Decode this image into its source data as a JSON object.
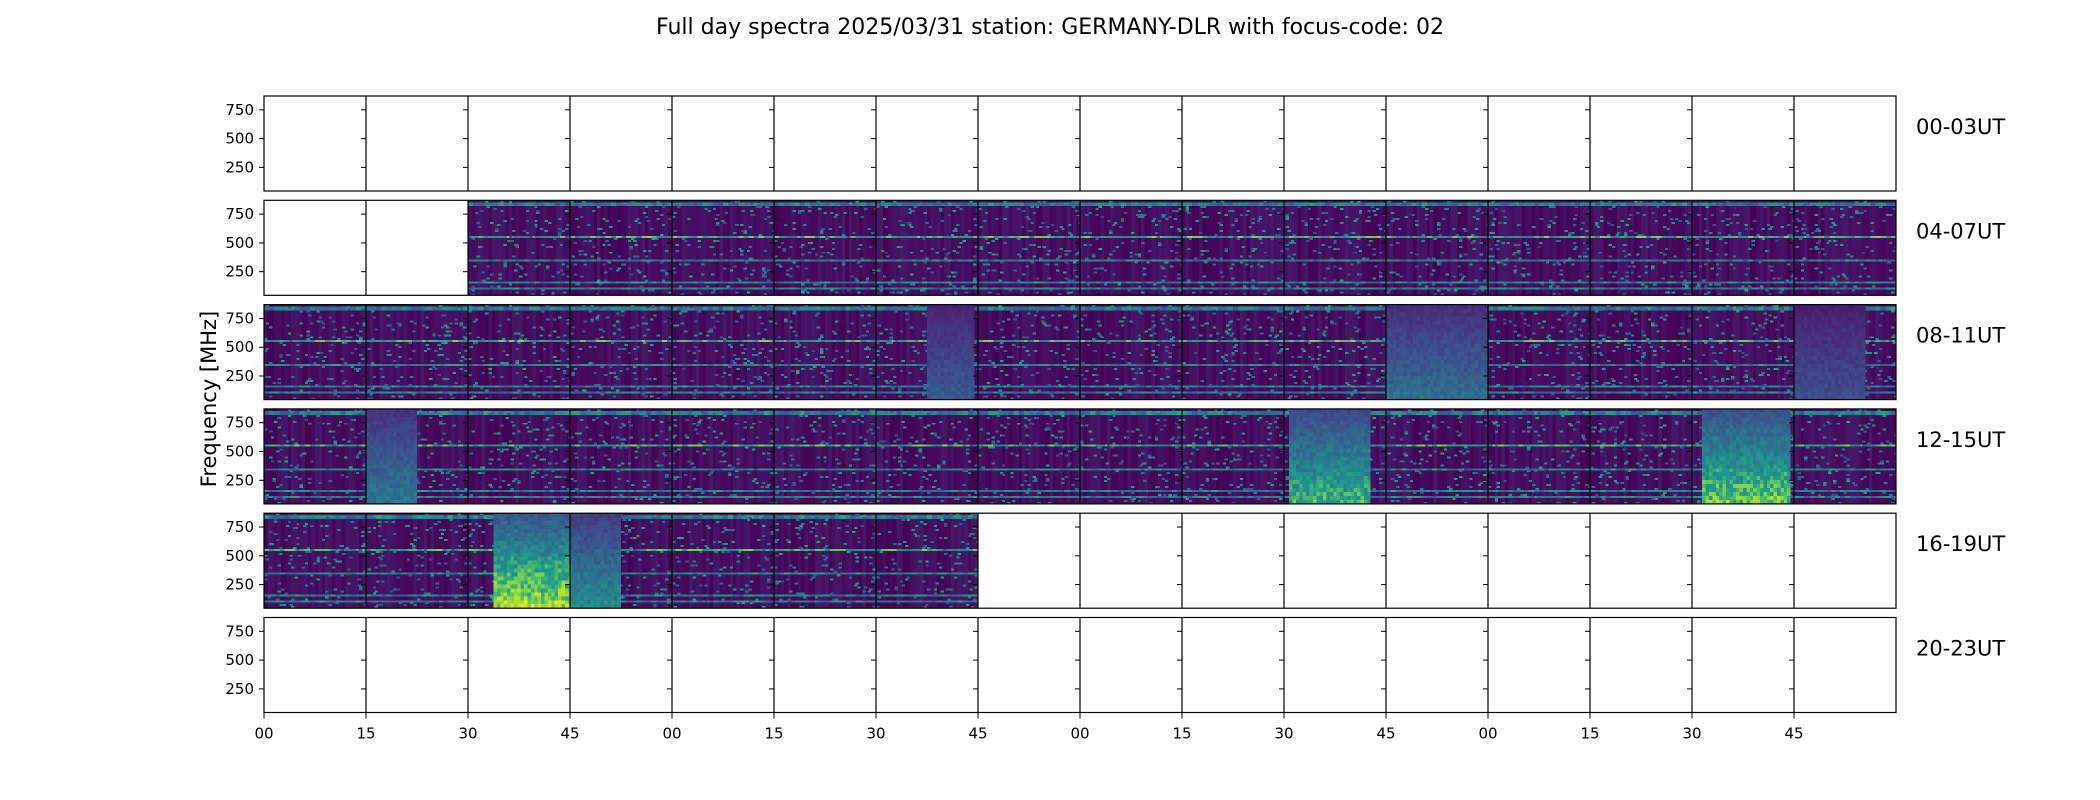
{
  "title": "Full day spectra 2025/03/31 station: GERMANY-DLR with focus-code: 02",
  "chart_data": {
    "type": "heatmap",
    "title": "Full day spectra 2025/03/31 station: GERMANY-DLR with focus-code: 02",
    "ylabel": "Frequency [MHz]",
    "ylim": [
      45,
      870
    ],
    "yticks": [
      250,
      500,
      750
    ],
    "xtick_labels": [
      "00",
      "15",
      "30",
      "45",
      "00",
      "15",
      "30",
      "45",
      "00",
      "15",
      "30",
      "45",
      "00",
      "15",
      "30",
      "45"
    ],
    "panels_per_row": 16,
    "panel_minutes": 15,
    "colormap": "viridis",
    "colormap_stops": [
      "#440154",
      "#482777",
      "#3f4a8a",
      "#31678e",
      "#26838f",
      "#1f9d8a",
      "#6cce5a",
      "#b6de2b",
      "#fee825"
    ],
    "rows": [
      {
        "label": "00-03UT",
        "filled": []
      },
      {
        "label": "04-07UT",
        "filled": [
          [
            2,
            16
          ]
        ]
      },
      {
        "label": "08-11UT",
        "filled": [
          [
            0,
            16
          ]
        ]
      },
      {
        "label": "12-15UT",
        "filled": [
          [
            0,
            16
          ]
        ]
      },
      {
        "label": "16-19UT",
        "filled": [
          [
            0,
            7
          ]
        ]
      },
      {
        "label": "20-23UT",
        "filled": []
      }
    ]
  }
}
